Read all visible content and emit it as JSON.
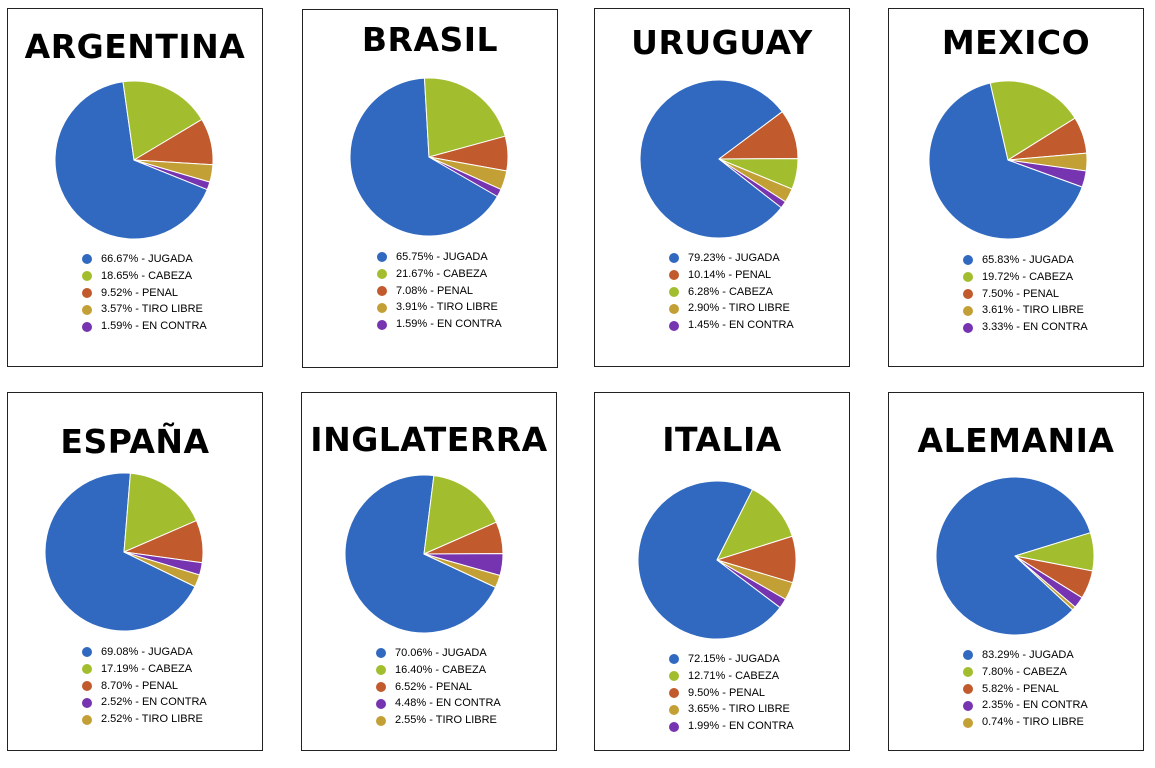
{
  "colors": {
    "JUGADA": "#3069bf",
    "CABEZA": "#a2be2f",
    "PENAL": "#c15a2c",
    "TIRO LIBRE": "#c3a035",
    "EN CONTRA": "#7634b0"
  },
  "chart_data": [
    {
      "type": "pie",
      "title": "ARGENTINA",
      "labels": [
        "JUGADA",
        "CABEZA",
        "PENAL",
        "TIRO LIBRE",
        "EN CONTRA"
      ],
      "values": [
        66.67,
        18.65,
        9.52,
        3.57,
        1.59
      ],
      "legend_text": [
        "66.67% - JUGADA",
        "18.65% - CABEZA",
        "9.52% - PENAL",
        "3.57% - TIRO LIBRE",
        "1.59% - EN CONTRA"
      ]
    },
    {
      "type": "pie",
      "title": "BRASIL",
      "labels": [
        "JUGADA",
        "CABEZA",
        "PENAL",
        "TIRO LIBRE",
        "EN CONTRA"
      ],
      "values": [
        65.75,
        21.67,
        7.08,
        3.91,
        1.59
      ],
      "legend_text": [
        "65.75% - JUGADA",
        "21.67% - CABEZA",
        "7.08% - PENAL",
        "3.91% - TIRO LIBRE",
        "1.59% - EN CONTRA"
      ]
    },
    {
      "type": "pie",
      "title": "URUGUAY",
      "labels": [
        "JUGADA",
        "PENAL",
        "CABEZA",
        "TIRO LIBRE",
        "EN CONTRA"
      ],
      "values": [
        79.23,
        10.14,
        6.28,
        2.9,
        1.45
      ],
      "legend_text": [
        "79.23% - JUGADA",
        "10.14% - PENAL",
        "6.28% - CABEZA",
        "2.90% - TIRO LIBRE",
        "1.45% - EN CONTRA"
      ]
    },
    {
      "type": "pie",
      "title": "MEXICO",
      "labels": [
        "JUGADA",
        "CABEZA",
        "PENAL",
        "TIRO LIBRE",
        "EN CONTRA"
      ],
      "values": [
        65.83,
        19.72,
        7.5,
        3.61,
        3.33
      ],
      "legend_text": [
        "65.83% - JUGADA",
        "19.72% - CABEZA",
        "7.50% - PENAL",
        "3.61% - TIRO LIBRE",
        "3.33% - EN CONTRA"
      ]
    },
    {
      "type": "pie",
      "title": "ESPAÑA",
      "labels": [
        "JUGADA",
        "CABEZA",
        "PENAL",
        "EN CONTRA",
        "TIRO LIBRE"
      ],
      "values": [
        69.08,
        17.19,
        8.7,
        2.52,
        2.52
      ],
      "legend_text": [
        "69.08% - JUGADA",
        "17.19% - CABEZA",
        "8.70% - PENAL",
        "2.52% - EN CONTRA",
        "2.52% - TIRO LIBRE"
      ]
    },
    {
      "type": "pie",
      "title": "INGLATERRA",
      "labels": [
        "JUGADA",
        "CABEZA",
        "PENAL",
        "EN CONTRA",
        "TIRO LIBRE"
      ],
      "values": [
        70.06,
        16.4,
        6.52,
        4.48,
        2.55
      ],
      "legend_text": [
        "70.06% - JUGADA",
        "16.40% - CABEZA",
        "6.52% - PENAL",
        "4.48% - EN CONTRA",
        "2.55% - TIRO LIBRE"
      ]
    },
    {
      "type": "pie",
      "title": "ITALIA",
      "labels": [
        "JUGADA",
        "CABEZA",
        "PENAL",
        "TIRO LIBRE",
        "EN CONTRA"
      ],
      "values": [
        72.15,
        12.71,
        9.5,
        3.65,
        1.99
      ],
      "legend_text": [
        "72.15% - JUGADA",
        "12.71% - CABEZA",
        "9.50% - PENAL",
        "3.65% - TIRO LIBRE",
        "1.99% - EN CONTRA"
      ]
    },
    {
      "type": "pie",
      "title": "ALEMANIA",
      "labels": [
        "JUGADA",
        "CABEZA",
        "PENAL",
        "EN CONTRA",
        "TIRO LIBRE"
      ],
      "values": [
        83.29,
        7.8,
        5.82,
        2.35,
        0.74
      ],
      "legend_text": [
        "83.29% - JUGADA",
        "7.80% - CABEZA",
        "5.82% - PENAL",
        "2.35% - EN CONTRA",
        "0.74% - TIRO LIBRE"
      ]
    }
  ]
}
